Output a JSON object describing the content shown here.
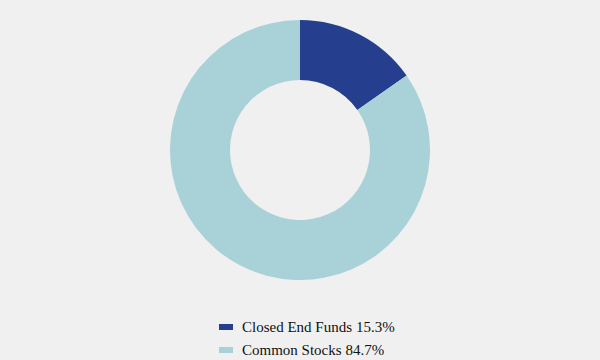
{
  "chart_data": {
    "type": "pie",
    "categories": [
      "Closed End Funds",
      "Common Stocks"
    ],
    "values": [
      15.3,
      84.7
    ],
    "value_labels": [
      "15.3%",
      "84.7%"
    ],
    "colors": [
      "#253f8e",
      "#a8d1d8"
    ],
    "legend": "bottom"
  }
}
